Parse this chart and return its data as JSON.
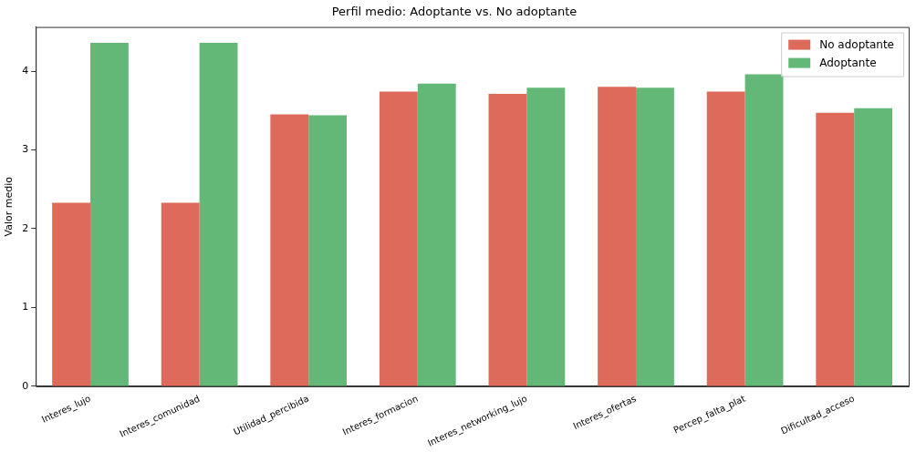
{
  "chart_data": {
    "type": "bar",
    "title": "Perfil medio: Adoptante vs. No adoptante",
    "ylabel": "Valor medio",
    "categories": [
      "Interes_lujo",
      "Interes_comunidad",
      "Utilidad_percibida",
      "Interes_formacion",
      "Interes_networking_lujo",
      "Interes_ofertas",
      "Percep_falta_plat",
      "Dificultad_acceso"
    ],
    "series": [
      {
        "name": "No adoptante",
        "color": "#dd6a5a",
        "values": [
          2.33,
          2.33,
          3.45,
          3.74,
          3.71,
          3.8,
          3.74,
          3.47
        ]
      },
      {
        "name": "Adoptante",
        "color": "#64b877",
        "values": [
          4.36,
          4.36,
          3.44,
          3.84,
          3.79,
          3.79,
          3.96,
          3.53
        ]
      }
    ],
    "ylim": [
      0,
      4.56
    ],
    "yticks": [
      0,
      1,
      2,
      3,
      4
    ],
    "grid": false,
    "legend": "top right"
  }
}
